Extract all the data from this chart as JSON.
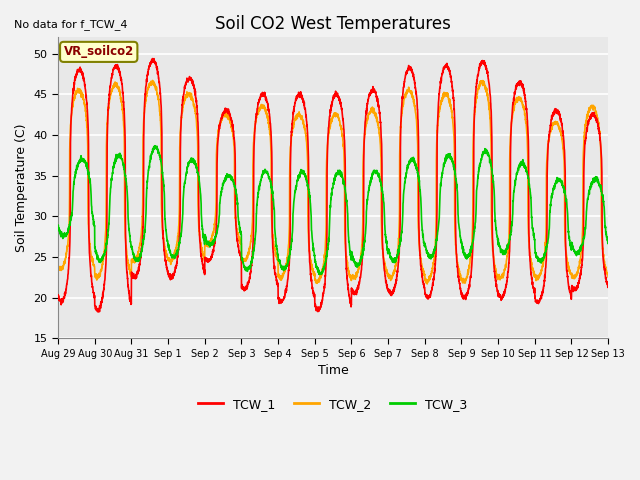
{
  "title": "Soil CO2 West Temperatures",
  "xlabel": "Time",
  "ylabel": "Soil Temperature (C)",
  "no_data_text": "No data for f_TCW_4",
  "annotation_text": "VR_soilco2",
  "ylim": [
    15,
    52
  ],
  "yticks": [
    15,
    20,
    25,
    30,
    35,
    40,
    45,
    50
  ],
  "x_labels": [
    "Aug 29",
    "Aug 30",
    "Aug 31",
    "Sep 1",
    "Sep 2",
    "Sep 3",
    "Sep 4",
    "Sep 5",
    "Sep 6",
    "Sep 7",
    "Sep 8",
    "Sep 9",
    "Sep 10",
    "Sep 11",
    "Sep 12",
    "Sep 13"
  ],
  "color_TCW1": "#FF0000",
  "color_TCW2": "#FFA500",
  "color_TCW3": "#00CC00",
  "legend_labels": [
    "TCW_1",
    "TCW_2",
    "TCW_3"
  ],
  "plot_bg_color": "#E8E8E8",
  "fig_bg_color": "#F2F2F2",
  "line_width": 1.2,
  "grid_color": "#FFFFFF",
  "figsize": [
    6.4,
    4.8
  ],
  "dpi": 100
}
